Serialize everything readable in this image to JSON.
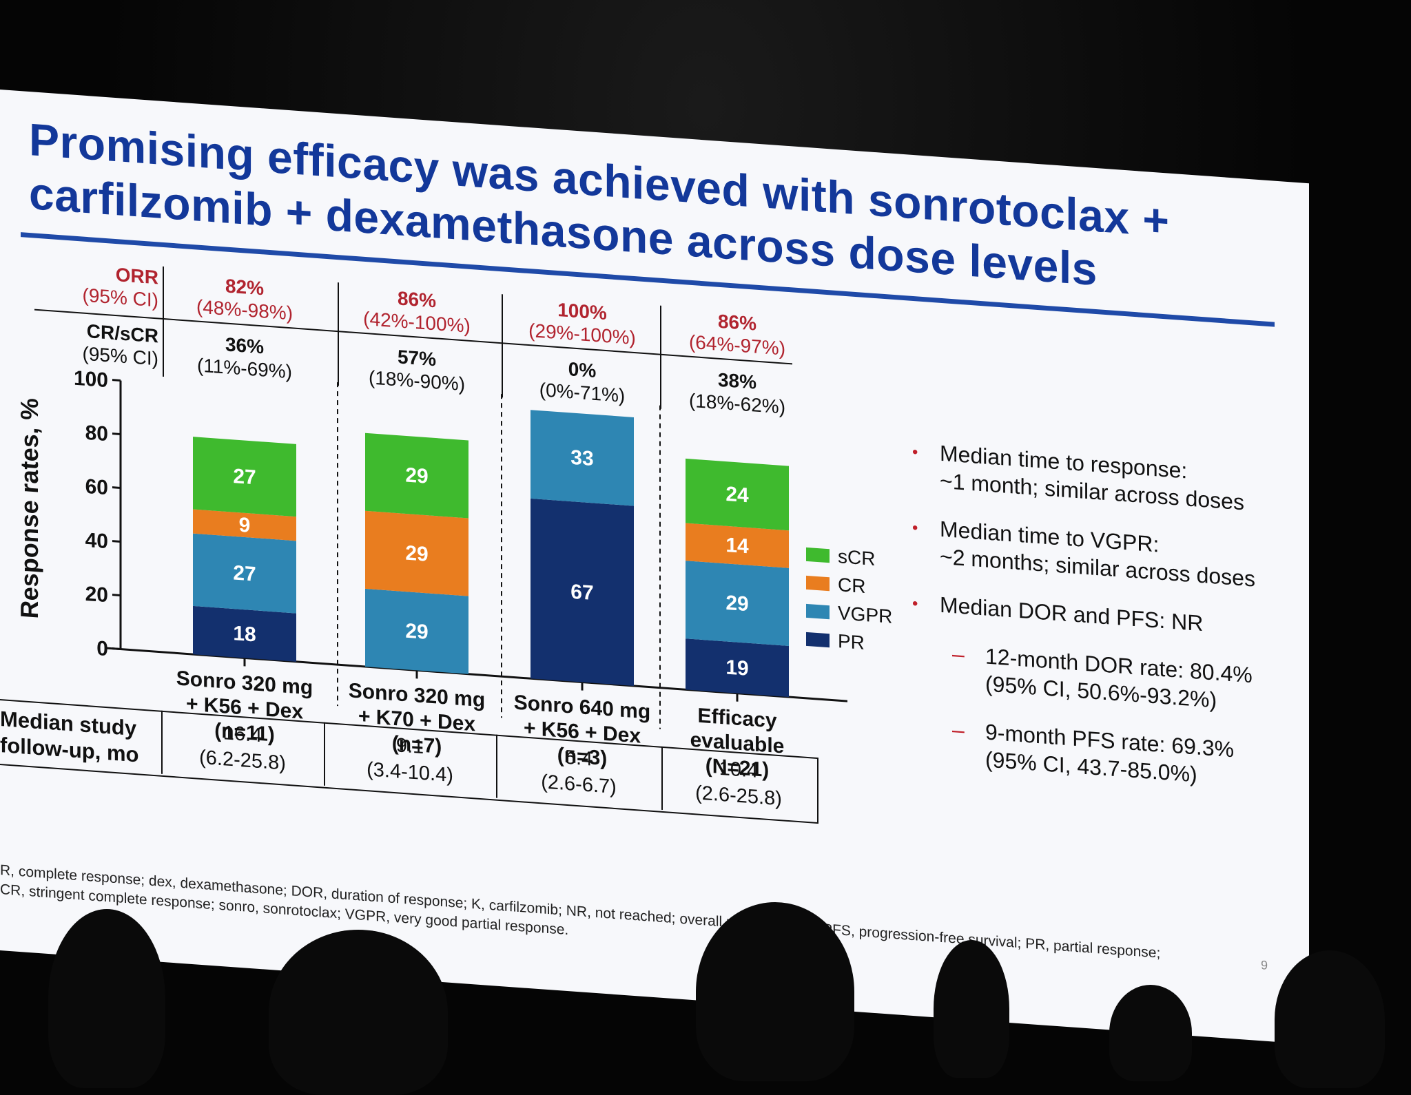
{
  "title": "Promising efficacy was achieved with sonrotoclax + carfilzomib + dexamethasone across dose levels",
  "header": {
    "orr_label": "ORR",
    "orr_ci_label": "(95% CI)",
    "cr_label": "CR/sCR",
    "cr_ci_label": "(95% CI)"
  },
  "groups": [
    {
      "orr": "82%",
      "orr_ci": "(48%-98%)",
      "cr": "36%",
      "cr_ci": "(11%-69%)",
      "label1": "Sonro 320 mg",
      "label2": "+ K56 + Dex",
      "label3": "(n=11)",
      "fu": "16.4",
      "fu_range": "(6.2-25.8)"
    },
    {
      "orr": "86%",
      "orr_ci": "(42%-100%)",
      "cr": "57%",
      "cr_ci": "(18%-90%)",
      "label1": "Sonro 320 mg",
      "label2": "+ K70 + Dex",
      "label3": "(n=7)",
      "fu": "9.1",
      "fu_range": "(3.4-10.4)"
    },
    {
      "orr": "100%",
      "orr_ci": "(29%-100%)",
      "cr": "0%",
      "cr_ci": "(0%-71%)",
      "label1": "Sonro 640 mg",
      "label2": "+ K56 + Dex",
      "label3": "(n=3)",
      "fu": "5.4",
      "fu_range": "(2.6-6.7)"
    },
    {
      "orr": "86%",
      "orr_ci": "(64%-97%)",
      "cr": "38%",
      "cr_ci": "(18%-62%)",
      "label1": "Efficacy",
      "label2": "evaluable",
      "label3": "(N=21)",
      "fu": "10.4",
      "fu_range": "(2.6-25.8)"
    }
  ],
  "followup_label_1": "Median study",
  "followup_label_2": "follow-up, mo",
  "chart_data": {
    "type": "bar",
    "stacked": true,
    "categories": [
      "Sonro 320 mg + K56 + Dex (n=11)",
      "Sonro 320 mg + K70 + Dex (n=7)",
      "Sonro 640 mg + K56 + Dex (n=3)",
      "Efficacy evaluable (N=21)"
    ],
    "series": [
      {
        "name": "PR",
        "color": "#13306e",
        "values": [
          18,
          0,
          67,
          19
        ]
      },
      {
        "name": "VGPR",
        "color": "#2e86b3",
        "values": [
          27,
          29,
          33,
          29
        ]
      },
      {
        "name": "CR",
        "color": "#e97d1f",
        "values": [
          9,
          29,
          0,
          14
        ]
      },
      {
        "name": "sCR",
        "color": "#3fba2e",
        "values": [
          27,
          29,
          0,
          24
        ]
      }
    ],
    "legend_order": [
      "sCR",
      "CR",
      "VGPR",
      "PR"
    ],
    "ylabel": "Response rates, %",
    "ylim": [
      0,
      100
    ],
    "yticks": [
      0,
      20,
      40,
      60,
      80,
      100
    ],
    "legend_position": "right",
    "grid": false
  },
  "bullets": [
    {
      "text": "Median time to response:",
      "text2": "~1 month; similar across doses"
    },
    {
      "text": "Median time to VGPR:",
      "text2": "~2 months; similar across doses"
    },
    {
      "text": "Median DOR and PFS: NR",
      "text2": ""
    }
  ],
  "subbullets": [
    {
      "text": "12-month DOR rate: 80.4%",
      "text2": "(95% CI, 50.6%-93.2%)"
    },
    {
      "text": "9-month PFS rate: 69.3%",
      "text2": "(95% CI, 43.7-85.0%)"
    }
  ],
  "footnote_1": "R, complete response; dex, dexamethasone; DOR, duration of response; K, carfilzomib; NR, not reached; overall response rate; PFS, progression-free survival; PR, partial response;",
  "footnote_2": "CR, stringent complete response; sonro, sonrotoclax; VGPR, very good partial response.",
  "page_number": "9"
}
